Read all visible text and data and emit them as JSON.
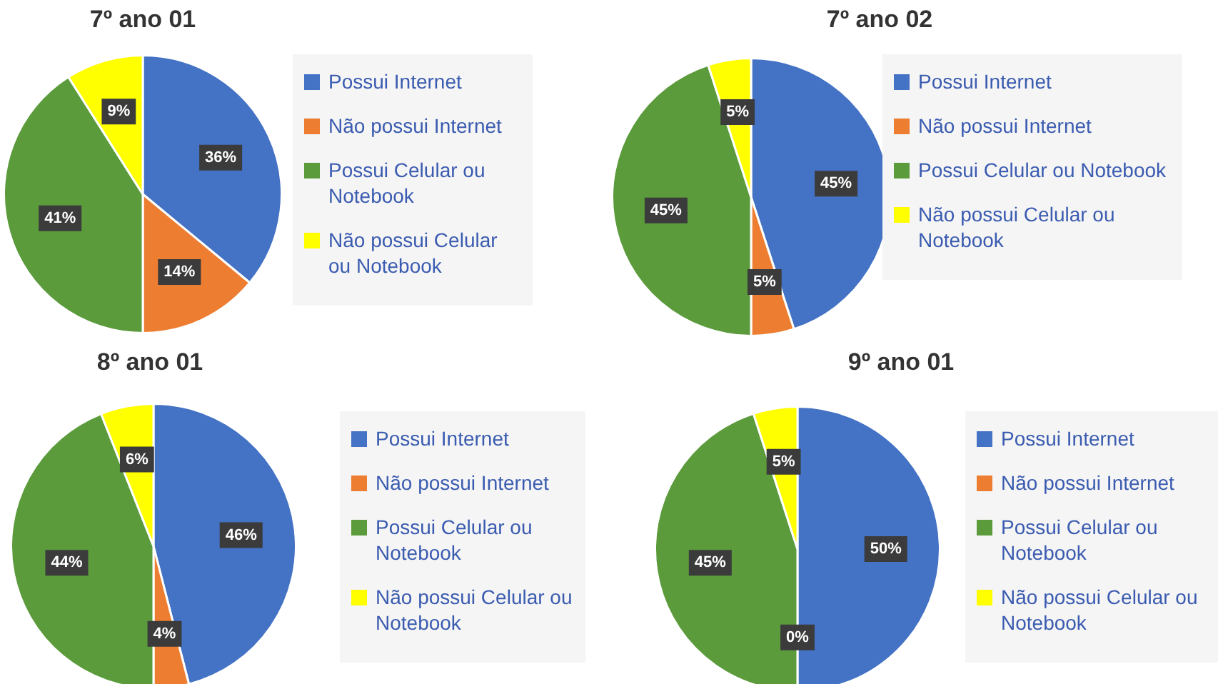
{
  "chart_data": [
    {
      "type": "pie",
      "title": "7º ano 01",
      "categories": [
        "Possui Internet",
        "Não possui Internet",
        "Possui Celular ou Notebook",
        "Não possui Celular ou Notebook"
      ],
      "values": [
        36,
        14,
        41,
        9
      ],
      "colors": [
        "#4472c4",
        "#ed7d31",
        "#5b9b3c",
        "#ffff00"
      ],
      "value_labels": [
        "36%",
        "14%",
        "41%",
        "9%"
      ],
      "legend": "right"
    },
    {
      "type": "pie",
      "title": "7º ano 02",
      "categories": [
        "Possui Internet",
        "Não possui Internet",
        "Possui Celular ou Notebook",
        "Não possui Celular ou Notebook"
      ],
      "values": [
        45,
        5,
        45,
        5
      ],
      "colors": [
        "#4472c4",
        "#ed7d31",
        "#5b9b3c",
        "#ffff00"
      ],
      "value_labels": [
        "45%",
        "5%",
        "45%",
        "5%"
      ],
      "legend": "right"
    },
    {
      "type": "pie",
      "title": "8º ano 01",
      "categories": [
        "Possui Internet",
        "Não possui Internet",
        "Possui Celular ou Notebook",
        "Não possui Celular ou Notebook"
      ],
      "values": [
        46,
        4,
        44,
        6
      ],
      "colors": [
        "#4472c4",
        "#ed7d31",
        "#5b9b3c",
        "#ffff00"
      ],
      "value_labels": [
        "46%",
        "4%",
        "44%",
        "6%"
      ],
      "legend": "right"
    },
    {
      "type": "pie",
      "title": "9º ano 01",
      "categories": [
        "Possui Internet",
        "Não possui Internet",
        "Possui Celular ou Notebook",
        "Não possui Celular ou Notebook"
      ],
      "values": [
        50,
        0,
        45,
        5
      ],
      "colors": [
        "#4472c4",
        "#ed7d31",
        "#5b9b3c",
        "#ffff00"
      ],
      "value_labels": [
        "50%",
        "0%",
        "45%",
        "5%"
      ],
      "legend": "right"
    }
  ]
}
